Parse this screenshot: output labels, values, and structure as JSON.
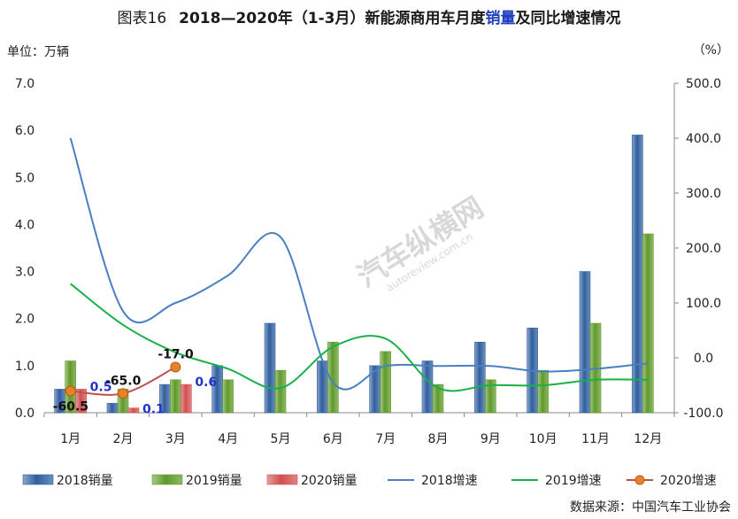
{
  "title": {
    "prefix": "图表16",
    "main": "2018—2020年（1-3月）新能源商用车月度",
    "highlight": "销量",
    "suffix": "及同比增速情况"
  },
  "unit_left": "单位：万辆",
  "unit_right": "（%）",
  "source": "数据来源：中国汽车工业协会",
  "watermark": {
    "text": "汽车纵横网",
    "sub": "autoreview.com.cn"
  },
  "colors": {
    "bar2018": "#2f5f9e",
    "bar2019": "#5f9a2a",
    "bar2020": "#d24f4f",
    "line2018": "#4a7fc1",
    "line2019": "#18b048",
    "line2020": "#c0504d",
    "marker2020": "#e8822a",
    "label_blue": "#2233cc"
  },
  "chart_data": {
    "type": "bar",
    "categories": [
      "1月",
      "2月",
      "3月",
      "4月",
      "5月",
      "6月",
      "7月",
      "8月",
      "9月",
      "10月",
      "11月",
      "12月"
    ],
    "y_left": {
      "ylim": [
        0,
        7
      ],
      "ticks": [
        "0.0",
        "1.0",
        "2.0",
        "3.0",
        "4.0",
        "5.0",
        "6.0",
        "7.0"
      ]
    },
    "y_right": {
      "ylim": [
        -100,
        500
      ],
      "ticks": [
        "-100.0",
        "0.0",
        "100.0",
        "200.0",
        "300.0",
        "400.0",
        "500.0"
      ]
    },
    "series": [
      {
        "name": "2018销量",
        "kind": "bar",
        "axis": "left",
        "values": [
          0.5,
          0.2,
          0.6,
          1.0,
          1.9,
          1.1,
          1.0,
          1.1,
          1.5,
          1.8,
          3.0,
          5.9
        ]
      },
      {
        "name": "2019销量",
        "kind": "bar",
        "axis": "left",
        "values": [
          1.1,
          0.5,
          0.7,
          0.7,
          0.9,
          1.5,
          1.3,
          0.6,
          0.7,
          0.9,
          1.9,
          3.8
        ]
      },
      {
        "name": "2020销量",
        "kind": "bar",
        "axis": "left",
        "values": [
          0.5,
          0.1,
          0.6,
          null,
          null,
          null,
          null,
          null,
          null,
          null,
          null,
          null
        ],
        "labels": [
          "0.5",
          "0.1",
          "0.6"
        ]
      },
      {
        "name": "2018增速",
        "kind": "line",
        "axis": "right",
        "values": [
          400,
          85,
          100,
          150,
          220,
          -45,
          -15,
          -15,
          -15,
          -25,
          -20,
          -10
        ]
      },
      {
        "name": "2019增速",
        "kind": "line",
        "axis": "right",
        "values": [
          135,
          60,
          10,
          -20,
          -55,
          20,
          35,
          -55,
          -50,
          -50,
          -40,
          -40
        ]
      },
      {
        "name": "2020增速",
        "kind": "line",
        "axis": "right",
        "markers": true,
        "values": [
          -60.5,
          -65.0,
          -17.0,
          null,
          null,
          null,
          null,
          null,
          null,
          null,
          null,
          null
        ],
        "labels": [
          "-60.5",
          "-65.0",
          "-17.0"
        ]
      }
    ],
    "legend_position": "bottom",
    "grid": false
  }
}
